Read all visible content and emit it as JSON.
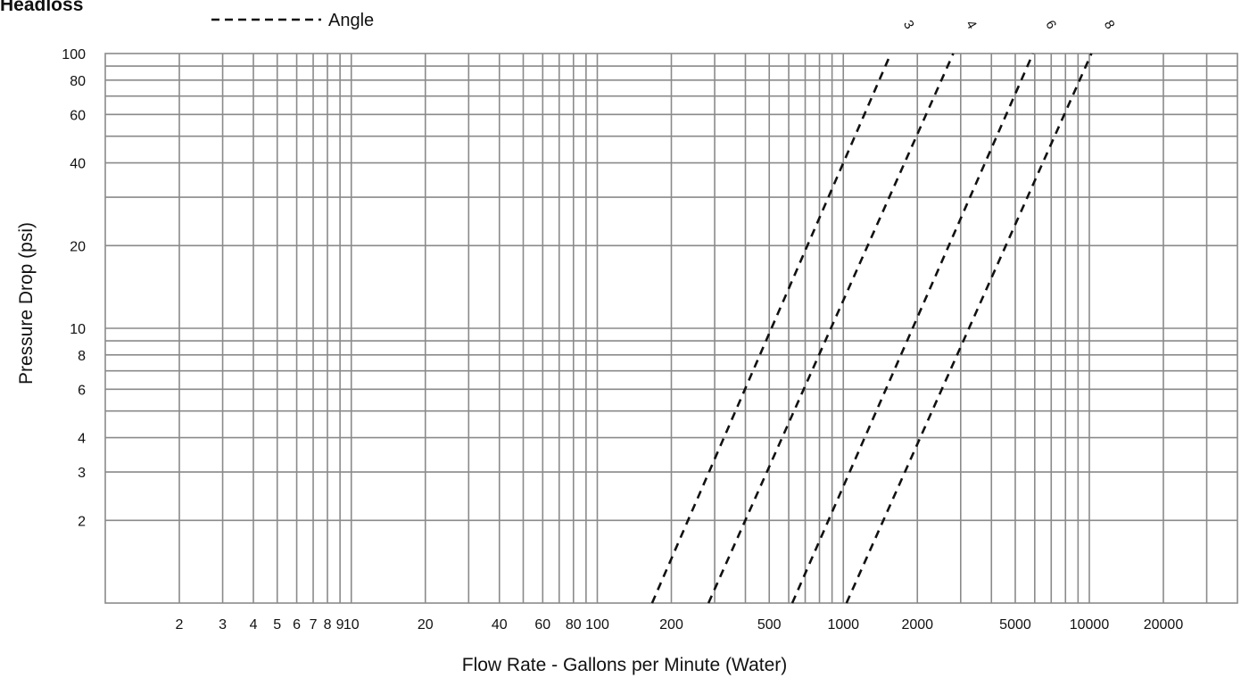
{
  "chart_data": {
    "type": "line",
    "title": "Headloss",
    "legend": {
      "label": "Angle",
      "style": "dashed",
      "placement": "top-left"
    },
    "xlabel": "Flow Rate - Gallons per Minute (Water)",
    "ylabel": "Pressure Drop (psi)",
    "xscale": "log",
    "yscale": "log",
    "xlim": [
      1,
      40000
    ],
    "ylim": [
      1,
      100
    ],
    "grid": true,
    "x_tick_labels": [
      "2",
      "3",
      "4",
      "5",
      "6",
      "7",
      "8",
      "9",
      "10",
      "20",
      "40",
      "60",
      "80",
      "100",
      "200",
      "500",
      "1000",
      "2000",
      "5000",
      "10000",
      "20000"
    ],
    "x_tick_values": [
      2,
      3,
      4,
      5,
      6,
      7,
      8,
      9,
      10,
      20,
      40,
      60,
      80,
      100,
      200,
      500,
      1000,
      2000,
      5000,
      10000,
      20000
    ],
    "y_tick_labels": [
      "100",
      "80",
      "60",
      "40",
      "20",
      "10",
      "8",
      "6",
      "4",
      "3",
      "2"
    ],
    "y_tick_values": [
      100,
      80,
      60,
      40,
      20,
      10,
      8,
      6,
      4,
      3,
      2
    ],
    "series": [
      {
        "name": "3",
        "x": [
          167,
          1560
        ],
        "y": [
          1,
          100
        ]
      },
      {
        "name": "4",
        "x": [
          283,
          2800
        ],
        "y": [
          1,
          100
        ]
      },
      {
        "name": "6",
        "x": [
          620,
          5900
        ],
        "y": [
          1,
          100
        ]
      },
      {
        "name": "8",
        "x": [
          1030,
          10200
        ],
        "y": [
          1,
          100
        ]
      }
    ]
  },
  "colors": {
    "grid": "#8a8a8a",
    "series": "#111111"
  }
}
